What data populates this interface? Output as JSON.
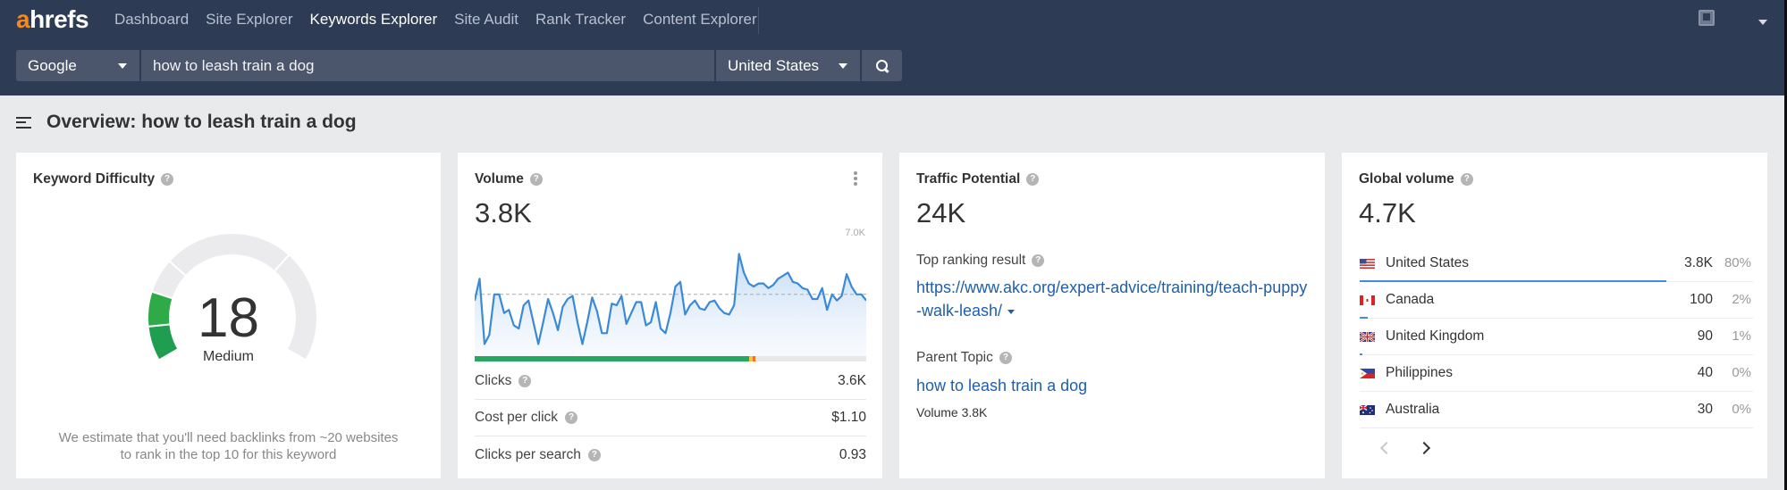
{
  "header": {
    "logo": {
      "accent": "a",
      "rest": "hrefs"
    },
    "nav": [
      {
        "label": "Dashboard",
        "active": false
      },
      {
        "label": "Site Explorer",
        "active": false
      },
      {
        "label": "Keywords Explorer",
        "active": true
      },
      {
        "label": "Site Audit",
        "active": false
      },
      {
        "label": "Rank Tracker",
        "active": false
      },
      {
        "label": "Content Explorer",
        "active": false
      }
    ],
    "icons": [
      "inbox-icon",
      "account-dropdown-caret"
    ]
  },
  "search": {
    "engine": "Google",
    "query": "how to leash train a dog",
    "country": "United States",
    "button_icon": "search-icon"
  },
  "page": {
    "title": "Overview: how to leash train a dog"
  },
  "keyword_difficulty": {
    "title": "Keyword Difficulty",
    "value": "18",
    "label": "Medium",
    "note_line1": "We estimate that you'll need backlinks from ~20 websites",
    "note_line2": "to rank in the top 10 for this keyword",
    "colors": {
      "filled": "#27a34f",
      "empty": "#ebebed"
    }
  },
  "volume": {
    "title": "Volume",
    "value": "3.8K",
    "chart_max_label": "7.0K",
    "clicks_split": {
      "organic_pct": 70.2,
      "paid_pct": 0.8,
      "other_pct": 0.8
    },
    "metrics": [
      {
        "label": "Clicks",
        "value": "3.6K"
      },
      {
        "label": "Cost per click",
        "value": "$1.10"
      },
      {
        "label": "Clicks per search",
        "value": "0.93"
      }
    ]
  },
  "traffic_potential": {
    "title": "Traffic Potential",
    "value": "24K",
    "top_result_label": "Top ranking result",
    "top_result_url": "https://www.akc.org/expert-advice/training/teach-puppy-walk-leash/",
    "parent_topic_label": "Parent Topic",
    "parent_topic": "how to leash train a dog",
    "parent_volume": "Volume 3.8K"
  },
  "global_volume": {
    "title": "Global volume",
    "value": "4.7K",
    "countries": [
      {
        "name": "United States",
        "volume": "3.8K",
        "pct": "80%",
        "share": 80,
        "flag": "us-flag-icon"
      },
      {
        "name": "Canada",
        "volume": "100",
        "pct": "2%",
        "share": 2,
        "flag": "ca-flag-icon"
      },
      {
        "name": "United Kingdom",
        "volume": "90",
        "pct": "1%",
        "share": 1,
        "flag": "uk-flag-icon"
      },
      {
        "name": "Philippines",
        "volume": "40",
        "pct": "0%",
        "share": 0,
        "flag": "ph-flag-icon"
      },
      {
        "name": "Australia",
        "volume": "30",
        "pct": "0%",
        "share": 0,
        "flag": "au-flag-icon"
      }
    ],
    "pager": {
      "prev_enabled": false,
      "next_enabled": true
    }
  },
  "chart_data": {
    "type": "area",
    "title": "Volume",
    "ylabel": "",
    "xlabel": "",
    "ylim": [
      0,
      7000
    ],
    "y_max_label": "7.0K",
    "reference_line": {
      "value": 3800,
      "style": "dashed"
    },
    "grid": false,
    "values": [
      3400,
      4800,
      600,
      1200,
      3800,
      3800,
      2600,
      2800,
      1800,
      1600,
      3100,
      3400,
      2000,
      600,
      2000,
      3500,
      2600,
      1500,
      3000,
      3500,
      3700,
      2000,
      600,
      2000,
      3600,
      2700,
      1300,
      1300,
      3200,
      3100,
      3700,
      1900,
      2600,
      3300,
      3300,
      1800,
      2000,
      3300,
      1600,
      1300,
      2600,
      4300,
      4600,
      2500,
      3100,
      3400,
      2900,
      2800,
      3300,
      3400,
      2900,
      2600,
      2500,
      3100,
      6400,
      5200,
      4500,
      4300,
      4500,
      4500,
      4200,
      4400,
      4800,
      5000,
      5200,
      4600,
      4500,
      4200,
      4100,
      3500,
      3500,
      4200,
      2800,
      3800,
      3400,
      3700,
      5100,
      4300,
      3800,
      3800,
      3400
    ]
  }
}
